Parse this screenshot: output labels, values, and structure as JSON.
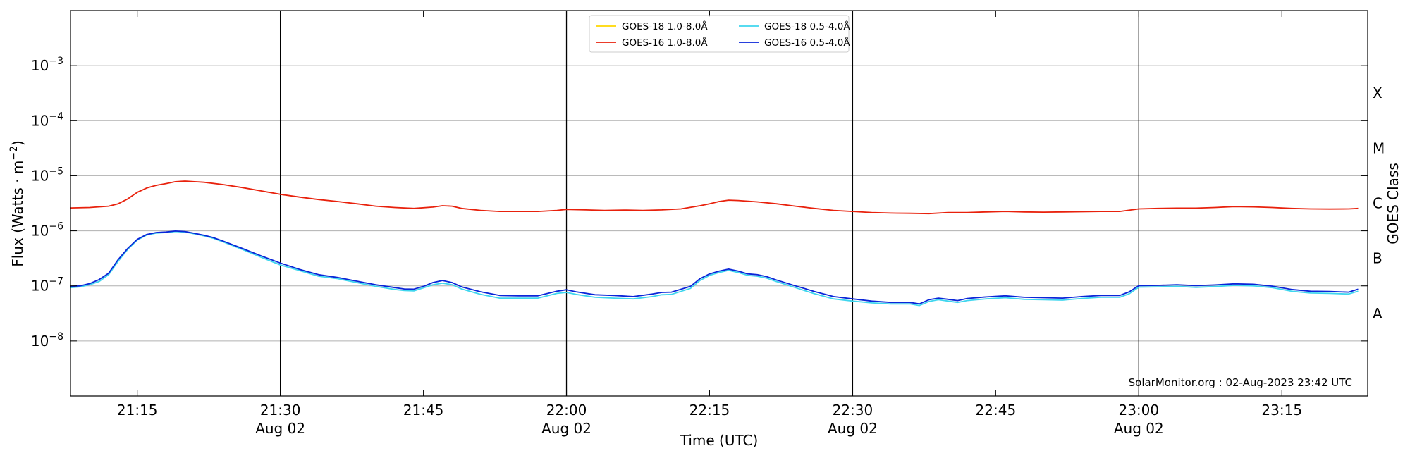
{
  "chart_data": {
    "type": "line",
    "title": "",
    "xlabel": "Time (UTC)",
    "ylabel_main": "Flux (Watts · m",
    "ylabel_exp": "−2",
    "ylabel_close": ")",
    "ylabel_right": "GOES Class",
    "y_scale": "log",
    "ylim": [
      1e-09,
      0.01
    ],
    "xlim": [
      "21:08",
      "23:24"
    ],
    "grid": "horizontal",
    "legend_position": "top-center",
    "annotation": "SolarMonitor.org : 02-Aug-2023 23:42 UTC",
    "y_ticks": [
      {
        "value": 1e-08,
        "exp": "−8"
      },
      {
        "value": 1e-07,
        "exp": "−7"
      },
      {
        "value": 1e-06,
        "exp": "−6"
      },
      {
        "value": 1e-05,
        "exp": "−5"
      },
      {
        "value": 0.0001,
        "exp": "−4"
      },
      {
        "value": 0.001,
        "exp": "−3"
      }
    ],
    "y_tick_base": "10",
    "x_ticks": [
      {
        "time": "21:15",
        "label": "21:15",
        "date": ""
      },
      {
        "time": "21:30",
        "label": "21:30",
        "date": "Aug 02"
      },
      {
        "time": "21:45",
        "label": "21:45",
        "date": ""
      },
      {
        "time": "22:00",
        "label": "22:00",
        "date": "Aug 02"
      },
      {
        "time": "22:15",
        "label": "22:15",
        "date": ""
      },
      {
        "time": "22:30",
        "label": "22:30",
        "date": "Aug 02"
      },
      {
        "time": "22:45",
        "label": "22:45",
        "date": ""
      },
      {
        "time": "23:00",
        "label": "23:00",
        "date": "Aug 02"
      },
      {
        "time": "23:15",
        "label": "23:15",
        "date": ""
      }
    ],
    "day_lines": [
      "21:30",
      "22:00",
      "22:30",
      "23:00"
    ],
    "goes_classes": [
      {
        "label": "A",
        "value": 3.16e-08
      },
      {
        "label": "B",
        "value": 3.16e-07
      },
      {
        "label": "C",
        "value": 3.16e-06
      },
      {
        "label": "M",
        "value": 3.16e-05
      },
      {
        "label": "X",
        "value": 0.000316
      }
    ],
    "series": [
      {
        "name": "GOES-18 1.0-8.0Å",
        "color": "#ffd700",
        "legend_col": 0,
        "legend_row": 0,
        "points": []
      },
      {
        "name": "GOES-16 1.0-8.0Å",
        "color": "#e8210c",
        "legend_col": 0,
        "legend_row": 1,
        "points": [
          [
            "21:08",
            2.6e-06
          ],
          [
            "21:10",
            2.65e-06
          ],
          [
            "21:12",
            2.8e-06
          ],
          [
            "21:13",
            3.1e-06
          ],
          [
            "21:14",
            3.8e-06
          ],
          [
            "21:15",
            5e-06
          ],
          [
            "21:16",
            6e-06
          ],
          [
            "21:17",
            6.7e-06
          ],
          [
            "21:18",
            7.2e-06
          ],
          [
            "21:19",
            7.8e-06
          ],
          [
            "21:20",
            8e-06
          ],
          [
            "21:21",
            7.8e-06
          ],
          [
            "21:22",
            7.6e-06
          ],
          [
            "21:24",
            6.9e-06
          ],
          [
            "21:26",
            6.1e-06
          ],
          [
            "21:28",
            5.3e-06
          ],
          [
            "21:30",
            4.6e-06
          ],
          [
            "21:32",
            4.1e-06
          ],
          [
            "21:34",
            3.7e-06
          ],
          [
            "21:36",
            3.4e-06
          ],
          [
            "21:38",
            3.1e-06
          ],
          [
            "21:40",
            2.8e-06
          ],
          [
            "21:42",
            2.65e-06
          ],
          [
            "21:44",
            2.55e-06
          ],
          [
            "21:46",
            2.7e-06
          ],
          [
            "21:47",
            2.85e-06
          ],
          [
            "21:48",
            2.8e-06
          ],
          [
            "21:49",
            2.55e-06
          ],
          [
            "21:51",
            2.35e-06
          ],
          [
            "21:53",
            2.25e-06
          ],
          [
            "21:55",
            2.25e-06
          ],
          [
            "21:57",
            2.25e-06
          ],
          [
            "21:59",
            2.35e-06
          ],
          [
            "22:00",
            2.45e-06
          ],
          [
            "22:02",
            2.4e-06
          ],
          [
            "22:04",
            2.35e-06
          ],
          [
            "22:06",
            2.38e-06
          ],
          [
            "22:08",
            2.35e-06
          ],
          [
            "22:10",
            2.4e-06
          ],
          [
            "22:12",
            2.5e-06
          ],
          [
            "22:14",
            2.85e-06
          ],
          [
            "22:15",
            3.1e-06
          ],
          [
            "22:16",
            3.4e-06
          ],
          [
            "22:17",
            3.6e-06
          ],
          [
            "22:18",
            3.55e-06
          ],
          [
            "22:20",
            3.35e-06
          ],
          [
            "22:22",
            3.1e-06
          ],
          [
            "22:24",
            2.8e-06
          ],
          [
            "22:26",
            2.55e-06
          ],
          [
            "22:28",
            2.35e-06
          ],
          [
            "22:30",
            2.25e-06
          ],
          [
            "22:32",
            2.15e-06
          ],
          [
            "22:34",
            2.1e-06
          ],
          [
            "22:36",
            2.08e-06
          ],
          [
            "22:38",
            2.05e-06
          ],
          [
            "22:40",
            2.15e-06
          ],
          [
            "22:42",
            2.15e-06
          ],
          [
            "22:44",
            2.2e-06
          ],
          [
            "22:46",
            2.25e-06
          ],
          [
            "22:48",
            2.2e-06
          ],
          [
            "22:50",
            2.18e-06
          ],
          [
            "22:52",
            2.2e-06
          ],
          [
            "22:54",
            2.22e-06
          ],
          [
            "22:56",
            2.25e-06
          ],
          [
            "22:58",
            2.25e-06
          ],
          [
            "23:00",
            2.5e-06
          ],
          [
            "23:02",
            2.55e-06
          ],
          [
            "23:04",
            2.58e-06
          ],
          [
            "23:06",
            2.58e-06
          ],
          [
            "23:08",
            2.65e-06
          ],
          [
            "23:10",
            2.75e-06
          ],
          [
            "23:12",
            2.72e-06
          ],
          [
            "23:14",
            2.65e-06
          ],
          [
            "23:16",
            2.55e-06
          ],
          [
            "23:18",
            2.5e-06
          ],
          [
            "23:20",
            2.48e-06
          ],
          [
            "23:22",
            2.5e-06
          ],
          [
            "23:23",
            2.55e-06
          ]
        ]
      },
      {
        "name": "GOES-18 0.5-4.0Å",
        "color": "#3fd6ee",
        "legend_col": 1,
        "legend_row": 0,
        "points": [
          [
            "21:08",
            9.3e-08
          ],
          [
            "21:09",
            9.6e-08
          ],
          [
            "21:10",
            1.05e-07
          ],
          [
            "21:11",
            1.2e-07
          ],
          [
            "21:12",
            1.6e-07
          ],
          [
            "21:13",
            2.8e-07
          ],
          [
            "21:14",
            4.6e-07
          ],
          [
            "21:15",
            6.8e-07
          ],
          [
            "21:16",
            8.4e-07
          ],
          [
            "21:17",
            9.1e-07
          ],
          [
            "21:18",
            9.3e-07
          ],
          [
            "21:19",
            9.7e-07
          ],
          [
            "21:20",
            9.5e-07
          ],
          [
            "21:21",
            8.8e-07
          ],
          [
            "21:22",
            8.1e-07
          ],
          [
            "21:23",
            7.3e-07
          ],
          [
            "21:24",
            6.3e-07
          ],
          [
            "21:26",
            4.6e-07
          ],
          [
            "21:28",
            3.3e-07
          ],
          [
            "21:30",
            2.4e-07
          ],
          [
            "21:32",
            1.9e-07
          ],
          [
            "21:34",
            1.5e-07
          ],
          [
            "21:36",
            1.35e-07
          ],
          [
            "21:38",
            1.15e-07
          ],
          [
            "21:40",
            9.8e-08
          ],
          [
            "21:42",
            8.6e-08
          ],
          [
            "21:43",
            8.2e-08
          ],
          [
            "21:44",
            8.1e-08
          ],
          [
            "21:45",
            9.2e-08
          ],
          [
            "21:46",
            1.05e-07
          ],
          [
            "21:47",
            1.12e-07
          ],
          [
            "21:48",
            1.05e-07
          ],
          [
            "21:49",
            8.8e-08
          ],
          [
            "21:51",
            7e-08
          ],
          [
            "21:53",
            6e-08
          ],
          [
            "21:55",
            6e-08
          ],
          [
            "21:57",
            6e-08
          ],
          [
            "21:59",
            7.3e-08
          ],
          [
            "22:00",
            7.6e-08
          ],
          [
            "22:01",
            7e-08
          ],
          [
            "22:03",
            6.2e-08
          ],
          [
            "22:05",
            6e-08
          ],
          [
            "22:07",
            5.8e-08
          ],
          [
            "22:09",
            6.4e-08
          ],
          [
            "22:10",
            6.9e-08
          ],
          [
            "22:11",
            7e-08
          ],
          [
            "22:13",
            9e-08
          ],
          [
            "22:14",
            1.25e-07
          ],
          [
            "22:15",
            1.55e-07
          ],
          [
            "22:16",
            1.75e-07
          ],
          [
            "22:17",
            1.92e-07
          ],
          [
            "22:18",
            1.75e-07
          ],
          [
            "22:19",
            1.55e-07
          ],
          [
            "22:20",
            1.5e-07
          ],
          [
            "22:21",
            1.38e-07
          ],
          [
            "22:22",
            1.2e-07
          ],
          [
            "22:24",
            9.3e-08
          ],
          [
            "22:26",
            7.2e-08
          ],
          [
            "22:28",
            5.8e-08
          ],
          [
            "22:30",
            5.3e-08
          ],
          [
            "22:32",
            4.9e-08
          ],
          [
            "22:34",
            4.7e-08
          ],
          [
            "22:36",
            4.7e-08
          ],
          [
            "22:37",
            4.4e-08
          ],
          [
            "22:38",
            5.2e-08
          ],
          [
            "22:39",
            5.6e-08
          ],
          [
            "22:40",
            5.3e-08
          ],
          [
            "22:41",
            5e-08
          ],
          [
            "22:42",
            5.4e-08
          ],
          [
            "22:44",
            5.8e-08
          ],
          [
            "22:46",
            6.1e-08
          ],
          [
            "22:48",
            5.7e-08
          ],
          [
            "22:50",
            5.6e-08
          ],
          [
            "22:52",
            5.5e-08
          ],
          [
            "22:54",
            5.9e-08
          ],
          [
            "22:56",
            6.2e-08
          ],
          [
            "22:58",
            6.2e-08
          ],
          [
            "22:59",
            7.2e-08
          ],
          [
            "23:00",
            9.5e-08
          ],
          [
            "23:02",
            9.6e-08
          ],
          [
            "23:04",
            9.8e-08
          ],
          [
            "23:06",
            9.4e-08
          ],
          [
            "23:08",
            9.7e-08
          ],
          [
            "23:10",
            1.02e-07
          ],
          [
            "23:12",
            1e-07
          ],
          [
            "23:14",
            9.3e-08
          ],
          [
            "23:16",
            8e-08
          ],
          [
            "23:18",
            7.4e-08
          ],
          [
            "23:20",
            7.3e-08
          ],
          [
            "23:22",
            7.1e-08
          ],
          [
            "23:23",
            8e-08
          ]
        ]
      },
      {
        "name": "GOES-16 0.5-4.0Å",
        "color": "#0a25d8",
        "legend_col": 1,
        "legend_row": 1,
        "points": [
          [
            "21:08",
            9.8e-08
          ],
          [
            "21:09",
            1e-07
          ],
          [
            "21:10",
            1.1e-07
          ],
          [
            "21:11",
            1.3e-07
          ],
          [
            "21:12",
            1.7e-07
          ],
          [
            "21:13",
            3e-07
          ],
          [
            "21:14",
            4.8e-07
          ],
          [
            "21:15",
            7e-07
          ],
          [
            "21:16",
            8.6e-07
          ],
          [
            "21:17",
            9.3e-07
          ],
          [
            "21:18",
            9.5e-07
          ],
          [
            "21:19",
            9.9e-07
          ],
          [
            "21:20",
            9.7e-07
          ],
          [
            "21:21",
            9e-07
          ],
          [
            "21:22",
            8.3e-07
          ],
          [
            "21:23",
            7.5e-07
          ],
          [
            "21:24",
            6.5e-07
          ],
          [
            "21:26",
            4.8e-07
          ],
          [
            "21:28",
            3.5e-07
          ],
          [
            "21:30",
            2.6e-07
          ],
          [
            "21:32",
            2e-07
          ],
          [
            "21:34",
            1.6e-07
          ],
          [
            "21:36",
            1.42e-07
          ],
          [
            "21:38",
            1.22e-07
          ],
          [
            "21:40",
            1.05e-07
          ],
          [
            "21:42",
            9.3e-08
          ],
          [
            "21:43",
            8.8e-08
          ],
          [
            "21:44",
            8.7e-08
          ],
          [
            "21:45",
            9.8e-08
          ],
          [
            "21:46",
            1.15e-07
          ],
          [
            "21:47",
            1.25e-07
          ],
          [
            "21:48",
            1.15e-07
          ],
          [
            "21:49",
            9.6e-08
          ],
          [
            "21:51",
            7.8e-08
          ],
          [
            "21:53",
            6.7e-08
          ],
          [
            "21:55",
            6.6e-08
          ],
          [
            "21:57",
            6.6e-08
          ],
          [
            "21:59",
            8e-08
          ],
          [
            "22:00",
            8.5e-08
          ],
          [
            "22:01",
            7.8e-08
          ],
          [
            "22:03",
            6.9e-08
          ],
          [
            "22:05",
            6.7e-08
          ],
          [
            "22:07",
            6.4e-08
          ],
          [
            "22:09",
            7.1e-08
          ],
          [
            "22:10",
            7.6e-08
          ],
          [
            "22:11",
            7.7e-08
          ],
          [
            "22:13",
            9.8e-08
          ],
          [
            "22:14",
            1.35e-07
          ],
          [
            "22:15",
            1.65e-07
          ],
          [
            "22:16",
            1.85e-07
          ],
          [
            "22:17",
            2.02e-07
          ],
          [
            "22:18",
            1.85e-07
          ],
          [
            "22:19",
            1.65e-07
          ],
          [
            "22:20",
            1.6e-07
          ],
          [
            "22:21",
            1.47e-07
          ],
          [
            "22:22",
            1.28e-07
          ],
          [
            "22:24",
            1e-07
          ],
          [
            "22:26",
            7.9e-08
          ],
          [
            "22:28",
            6.4e-08
          ],
          [
            "22:30",
            5.8e-08
          ],
          [
            "22:32",
            5.3e-08
          ],
          [
            "22:34",
            5e-08
          ],
          [
            "22:36",
            5e-08
          ],
          [
            "22:37",
            4.7e-08
          ],
          [
            "22:38",
            5.6e-08
          ],
          [
            "22:39",
            6e-08
          ],
          [
            "22:40",
            5.7e-08
          ],
          [
            "22:41",
            5.4e-08
          ],
          [
            "22:42",
            5.9e-08
          ],
          [
            "22:44",
            6.3e-08
          ],
          [
            "22:46",
            6.6e-08
          ],
          [
            "22:48",
            6.2e-08
          ],
          [
            "22:50",
            6.1e-08
          ],
          [
            "22:52",
            6e-08
          ],
          [
            "22:54",
            6.4e-08
          ],
          [
            "22:56",
            6.7e-08
          ],
          [
            "22:58",
            6.7e-08
          ],
          [
            "22:59",
            7.8e-08
          ],
          [
            "23:00",
            1.01e-07
          ],
          [
            "23:02",
            1.02e-07
          ],
          [
            "23:04",
            1.05e-07
          ],
          [
            "23:06",
            1.01e-07
          ],
          [
            "23:08",
            1.04e-07
          ],
          [
            "23:10",
            1.09e-07
          ],
          [
            "23:12",
            1.07e-07
          ],
          [
            "23:14",
            9.9e-08
          ],
          [
            "23:16",
            8.6e-08
          ],
          [
            "23:18",
            8e-08
          ],
          [
            "23:20",
            7.9e-08
          ],
          [
            "23:22",
            7.7e-08
          ],
          [
            "23:23",
            8.7e-08
          ]
        ]
      }
    ]
  }
}
